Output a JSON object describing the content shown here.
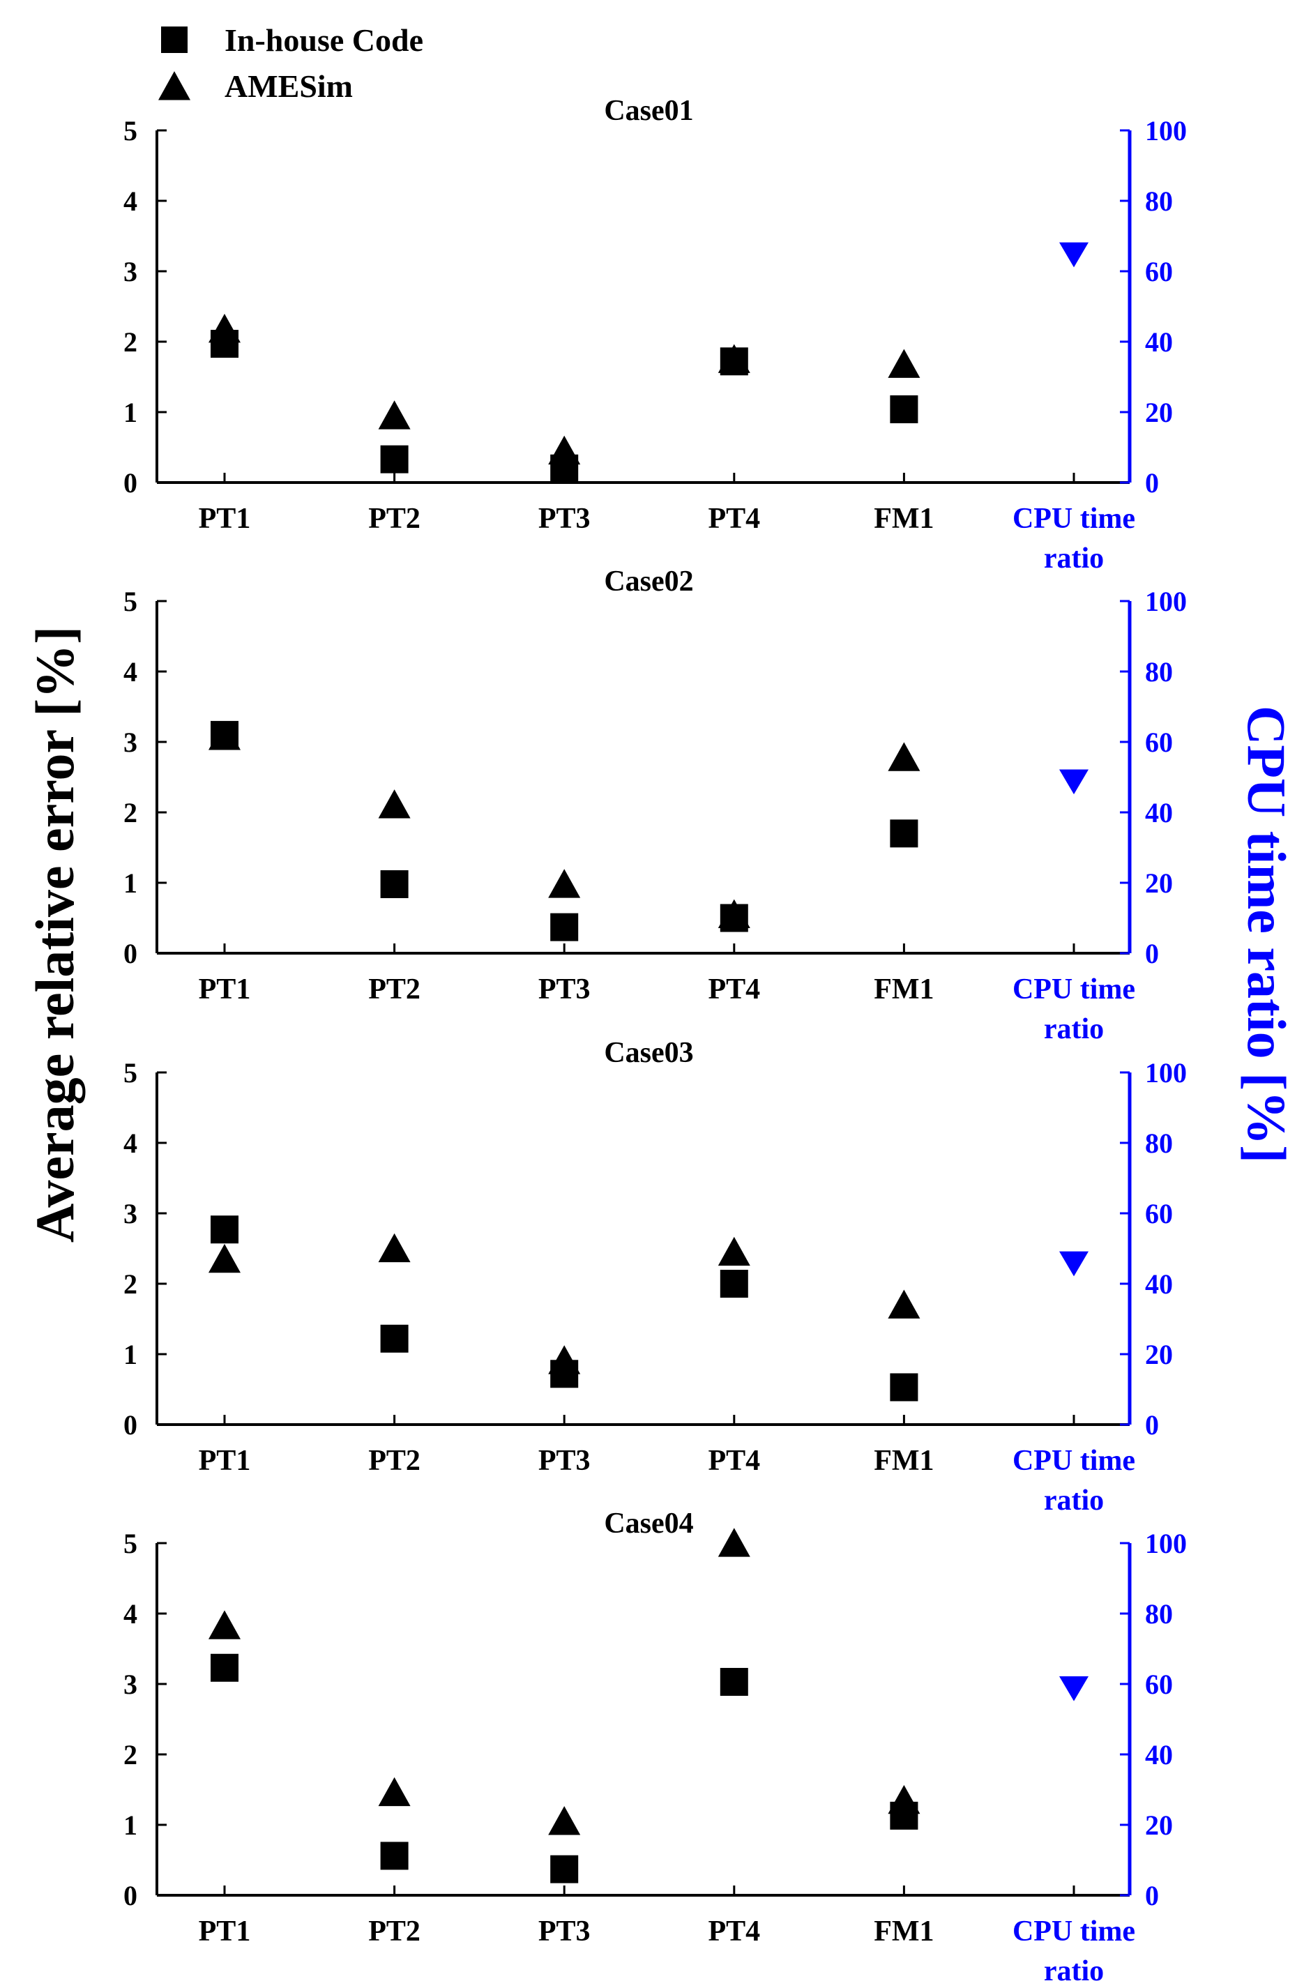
{
  "figure": {
    "left_axis_label": "Average relative error [%]",
    "right_axis_label": "CPU time ratio [%]",
    "legend": [
      {
        "label": "In-house Code",
        "marker": "square-icon"
      },
      {
        "label": "AMESim",
        "marker": "triangle-up-icon"
      }
    ]
  },
  "colors": {
    "primary": "#000000",
    "secondary": "#0000ff"
  },
  "chart_data": [
    {
      "type": "scatter",
      "title": "Case01",
      "categories": [
        "PT1",
        "PT2",
        "PT3",
        "PT4",
        "FM1"
      ],
      "cpu_category": [
        "CPU time",
        "ratio"
      ],
      "ylim": [
        0,
        5
      ],
      "yticks": [
        0,
        1,
        2,
        3,
        4,
        5
      ],
      "y2lim": [
        0,
        100
      ],
      "y2ticks": [
        0,
        20,
        40,
        60,
        80,
        100
      ],
      "series": [
        {
          "name": "In-house Code",
          "marker": "square",
          "values": [
            1.97,
            0.33,
            0.2,
            1.72,
            1.04
          ]
        },
        {
          "name": "AMESim",
          "marker": "triangle",
          "values": [
            2.15,
            0.92,
            0.42,
            1.72,
            1.65
          ]
        }
      ],
      "cpu_time_ratio": 65
    },
    {
      "type": "scatter",
      "title": "Case02",
      "categories": [
        "PT1",
        "PT2",
        "PT3",
        "PT4",
        "FM1"
      ],
      "cpu_category": [
        "CPU time",
        "ratio"
      ],
      "ylim": [
        0,
        5
      ],
      "yticks": [
        0,
        1,
        2,
        3,
        4,
        5
      ],
      "y2lim": [
        0,
        100
      ],
      "y2ticks": [
        0,
        20,
        40,
        60,
        80,
        100
      ],
      "series": [
        {
          "name": "In-house Code",
          "marker": "square",
          "values": [
            3.1,
            0.98,
            0.37,
            0.5,
            1.7
          ]
        },
        {
          "name": "AMESim",
          "marker": "triangle",
          "values": [
            3.05,
            2.08,
            0.95,
            0.52,
            2.75
          ]
        }
      ],
      "cpu_time_ratio": 49
    },
    {
      "type": "scatter",
      "title": "Case03",
      "categories": [
        "PT1",
        "PT2",
        "PT3",
        "PT4",
        "FM1"
      ],
      "cpu_category": [
        "CPU time",
        "ratio"
      ],
      "ylim": [
        0,
        5
      ],
      "yticks": [
        0,
        1,
        2,
        3,
        4,
        5
      ],
      "y2lim": [
        0,
        100
      ],
      "y2ticks": [
        0,
        20,
        40,
        60,
        80,
        100
      ],
      "series": [
        {
          "name": "In-house Code",
          "marker": "square",
          "values": [
            2.77,
            1.22,
            0.72,
            2.0,
            0.53
          ]
        },
        {
          "name": "AMESim",
          "marker": "triangle",
          "values": [
            2.32,
            2.47,
            0.88,
            2.42,
            1.67
          ]
        }
      ],
      "cpu_time_ratio": 46
    },
    {
      "type": "scatter",
      "title": "Case04",
      "categories": [
        "PT1",
        "PT2",
        "PT3",
        "PT4",
        "FM1"
      ],
      "cpu_category": [
        "CPU time",
        "ratio"
      ],
      "ylim": [
        0,
        5
      ],
      "yticks": [
        0,
        1,
        2,
        3,
        4,
        5
      ],
      "y2lim": [
        0,
        100
      ],
      "y2ticks": [
        0,
        20,
        40,
        60,
        80,
        100
      ],
      "series": [
        {
          "name": "In-house Code",
          "marker": "square",
          "values": [
            3.23,
            0.56,
            0.37,
            3.03,
            1.13
          ]
        },
        {
          "name": "AMESim",
          "marker": "triangle",
          "values": [
            3.8,
            1.43,
            1.02,
            4.97,
            1.32
          ]
        }
      ],
      "cpu_time_ratio": 59
    }
  ]
}
